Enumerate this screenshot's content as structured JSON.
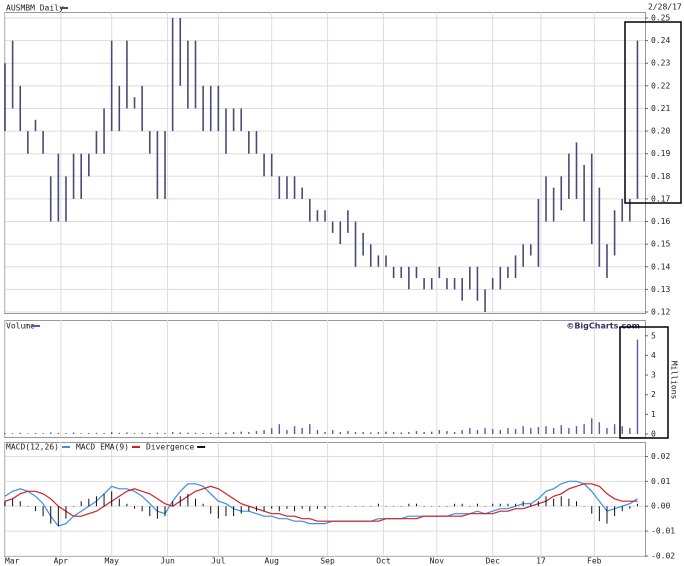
{
  "chart_data": [
    {
      "type": "range",
      "title": "AUSMBM Daily",
      "date": "2/28/17",
      "color": "#4a4a7a",
      "x": [
        0,
        3,
        6,
        9,
        12,
        15,
        18,
        21,
        24,
        27,
        30,
        33,
        36,
        39,
        42,
        45,
        48,
        51,
        54,
        57,
        60,
        63,
        66,
        69,
        72,
        75,
        78,
        81,
        84,
        87,
        90,
        93,
        96,
        99,
        102,
        105,
        108,
        111,
        114,
        117,
        120,
        123,
        126,
        129,
        132,
        135,
        138,
        141,
        144,
        147,
        150,
        153,
        156,
        159,
        162,
        165,
        168,
        171,
        174,
        177,
        180,
        183,
        186,
        189,
        192,
        195,
        198,
        201,
        204,
        207,
        210,
        213,
        216,
        219,
        222,
        225,
        228,
        231,
        234,
        237,
        240,
        243,
        246,
        249
      ],
      "high": [
        0.23,
        0.24,
        0.22,
        0.2,
        0.205,
        0.2,
        0.18,
        0.19,
        0.18,
        0.19,
        0.19,
        0.19,
        0.2,
        0.21,
        0.24,
        0.22,
        0.24,
        0.215,
        0.22,
        0.2,
        0.2,
        0.2,
        0.25,
        0.25,
        0.24,
        0.24,
        0.22,
        0.22,
        0.22,
        0.21,
        0.21,
        0.21,
        0.2,
        0.2,
        0.19,
        0.19,
        0.18,
        0.18,
        0.18,
        0.175,
        0.17,
        0.165,
        0.165,
        0.16,
        0.16,
        0.165,
        0.16,
        0.155,
        0.15,
        0.145,
        0.145,
        0.14,
        0.14,
        0.14,
        0.14,
        0.135,
        0.135,
        0.14,
        0.135,
        0.135,
        0.135,
        0.14,
        0.14,
        0.13,
        0.135,
        0.14,
        0.14,
        0.145,
        0.15,
        0.15,
        0.17,
        0.18,
        0.175,
        0.18,
        0.19,
        0.195,
        0.185,
        0.19,
        0.175,
        0.15,
        0.165,
        0.17,
        0.17,
        0.24
      ],
      "low": [
        0.2,
        0.21,
        0.2,
        0.19,
        0.2,
        0.19,
        0.16,
        0.16,
        0.16,
        0.17,
        0.17,
        0.18,
        0.19,
        0.19,
        0.2,
        0.2,
        0.21,
        0.21,
        0.2,
        0.19,
        0.17,
        0.17,
        0.2,
        0.22,
        0.21,
        0.21,
        0.2,
        0.2,
        0.2,
        0.19,
        0.2,
        0.2,
        0.19,
        0.19,
        0.18,
        0.18,
        0.17,
        0.17,
        0.17,
        0.17,
        0.16,
        0.16,
        0.16,
        0.155,
        0.15,
        0.155,
        0.14,
        0.145,
        0.14,
        0.14,
        0.14,
        0.135,
        0.135,
        0.13,
        0.135,
        0.13,
        0.13,
        0.135,
        0.13,
        0.13,
        0.125,
        0.13,
        0.125,
        0.12,
        0.13,
        0.13,
        0.135,
        0.135,
        0.14,
        0.145,
        0.14,
        0.16,
        0.16,
        0.165,
        0.17,
        0.17,
        0.16,
        0.15,
        0.14,
        0.135,
        0.145,
        0.16,
        0.16,
        0.17
      ],
      "xlim": [
        0,
        250
      ],
      "xticks": [
        {
          "value": 0,
          "label": "Mar"
        },
        {
          "value": 22,
          "label": "Apr"
        },
        {
          "value": 42,
          "label": "May"
        },
        {
          "value": 64,
          "label": "Jun"
        },
        {
          "value": 84,
          "label": "Jul"
        },
        {
          "value": 105,
          "label": "Aug"
        },
        {
          "value": 127,
          "label": "Sep"
        },
        {
          "value": 149,
          "label": "Oct"
        },
        {
          "value": 170,
          "label": "Nov"
        },
        {
          "value": 192,
          "label": "Dec"
        },
        {
          "value": 211,
          "label": "17"
        },
        {
          "value": 232,
          "label": "Feb"
        }
      ],
      "ylim": [
        0.12,
        0.25
      ],
      "yticks": [
        0.12,
        0.13,
        0.14,
        0.15,
        0.16,
        0.17,
        0.18,
        0.19,
        {
          "value": 0.2,
          "label": "0.20"
        },
        0.21,
        0.22,
        0.23,
        0.24,
        0.25
      ],
      "grid": true
    },
    {
      "type": "bar",
      "title": "Volume",
      "source": "©BigCharts.com",
      "y_label": "Millions",
      "color": "#5a5aa8",
      "values": [
        0.05,
        0.04,
        0.06,
        0.03,
        0.05,
        0.04,
        0.08,
        0.06,
        0.05,
        0.07,
        0.04,
        0.05,
        0.06,
        0.05,
        0.1,
        0.06,
        0.08,
        0.05,
        0.06,
        0.05,
        0.07,
        0.06,
        0.1,
        0.08,
        0.07,
        0.06,
        0.05,
        0.06,
        0.05,
        0.08,
        0.1,
        0.12,
        0.1,
        0.15,
        0.2,
        0.3,
        0.5,
        0.2,
        0.4,
        0.3,
        0.5,
        0.2,
        0.1,
        0.2,
        0.1,
        0.15,
        0.1,
        0.1,
        0.08,
        0.1,
        0.12,
        0.1,
        0.08,
        0.1,
        0.15,
        0.1,
        0.12,
        0.2,
        0.15,
        0.1,
        0.2,
        0.3,
        0.2,
        0.3,
        0.25,
        0.2,
        0.3,
        0.25,
        0.4,
        0.3,
        0.35,
        0.4,
        0.3,
        0.45,
        0.3,
        0.4,
        0.5,
        0.8,
        0.6,
        0.3,
        0.5,
        0.4,
        0.3,
        4.8
      ],
      "ylim": [
        0,
        5.7
      ],
      "yticks": [
        0,
        1,
        2,
        3,
        4,
        5
      ]
    },
    {
      "type": "line",
      "series": [
        {
          "name": "MACD(12,26)",
          "color": "#3a8ee6",
          "values": [
            0.004,
            0.006,
            0.007,
            0.006,
            0.004,
            0.001,
            -0.004,
            -0.008,
            -0.007,
            -0.004,
            -0.002,
            0,
            0.002,
            0.005,
            0.008,
            0.007,
            0.007,
            0.006,
            0.004,
            0.001,
            -0.002,
            -0.003,
            0.002,
            0.006,
            0.009,
            0.009,
            0.008,
            0.005,
            0.002,
            0.001,
            -0.001,
            -0.002,
            -0.002,
            -0.003,
            -0.004,
            -0.004,
            -0.005,
            -0.005,
            -0.006,
            -0.006,
            -0.007,
            -0.007,
            -0.007,
            -0.006,
            -0.006,
            -0.006,
            -0.006,
            -0.006,
            -0.006,
            -0.005,
            -0.005,
            -0.005,
            -0.005,
            -0.004,
            -0.004,
            -0.004,
            -0.004,
            -0.004,
            -0.004,
            -0.003,
            -0.003,
            -0.003,
            -0.002,
            -0.003,
            -0.002,
            -0.001,
            -0.001,
            0,
            0.001,
            0.001,
            0.003,
            0.006,
            0.007,
            0.009,
            0.01,
            0.01,
            0.009,
            0.006,
            0.002,
            -0.002,
            -0.001,
            0,
            0.001,
            0.003
          ]
        },
        {
          "name": "MACD EMA(9)",
          "color": "#d42020",
          "values": [
            0.002,
            0.003,
            0.005,
            0.006,
            0.006,
            0.005,
            0.003,
            0,
            -0.002,
            -0.004,
            -0.004,
            -0.003,
            -0.002,
            0,
            0.002,
            0.004,
            0.006,
            0.007,
            0.006,
            0.005,
            0.003,
            0.001,
            0,
            0.002,
            0.004,
            0.006,
            0.007,
            0.008,
            0.007,
            0.005,
            0.003,
            0.001,
            0,
            -0.001,
            -0.002,
            -0.003,
            -0.003,
            -0.004,
            -0.004,
            -0.005,
            -0.005,
            -0.006,
            -0.006,
            -0.006,
            -0.006,
            -0.006,
            -0.006,
            -0.006,
            -0.006,
            -0.006,
            -0.005,
            -0.005,
            -0.005,
            -0.005,
            -0.005,
            -0.004,
            -0.004,
            -0.004,
            -0.004,
            -0.004,
            -0.004,
            -0.003,
            -0.003,
            -0.003,
            -0.003,
            -0.002,
            -0.002,
            -0.001,
            -0.001,
            0,
            0.001,
            0.002,
            0.004,
            0.005,
            0.007,
            0.008,
            0.009,
            0.009,
            0.008,
            0.005,
            0.003,
            0.002,
            0.002,
            0.002
          ]
        },
        {
          "name": "Divergence",
          "color": "#111111",
          "type": "bar",
          "values": [
            0.002,
            0.003,
            0.002,
            0,
            -0.002,
            -0.004,
            -0.007,
            -0.008,
            -0.005,
            0,
            0.002,
            0.003,
            0.004,
            0.005,
            0.006,
            0.003,
            0.001,
            -0.001,
            -0.002,
            -0.004,
            -0.005,
            -0.004,
            0.002,
            0.004,
            0.005,
            0.003,
            0.001,
            -0.003,
            -0.005,
            -0.004,
            -0.004,
            -0.003,
            -0.002,
            -0.002,
            -0.002,
            -0.001,
            -0.002,
            -0.001,
            -0.002,
            -0.001,
            -0.002,
            -0.001,
            -0.001,
            0,
            0,
            0,
            0,
            0,
            0,
            0.001,
            0,
            0,
            0,
            0.001,
            0.001,
            0,
            0,
            0,
            0,
            0.001,
            0.001,
            0,
            0.001,
            0,
            0.001,
            0.001,
            0.001,
            0.001,
            0.002,
            0.001,
            0.002,
            0.004,
            0.003,
            0.004,
            0.003,
            0.002,
            0,
            -0.003,
            -0.006,
            -0.007,
            -0.004,
            -0.002,
            -0.001,
            0.001
          ]
        }
      ],
      "ylim": [
        -0.02,
        0.025
      ],
      "yticks": [
        0.02,
        0.01,
        {
          "value": 0,
          "label": "0.00"
        },
        -0.01,
        -0.02
      ]
    }
  ]
}
